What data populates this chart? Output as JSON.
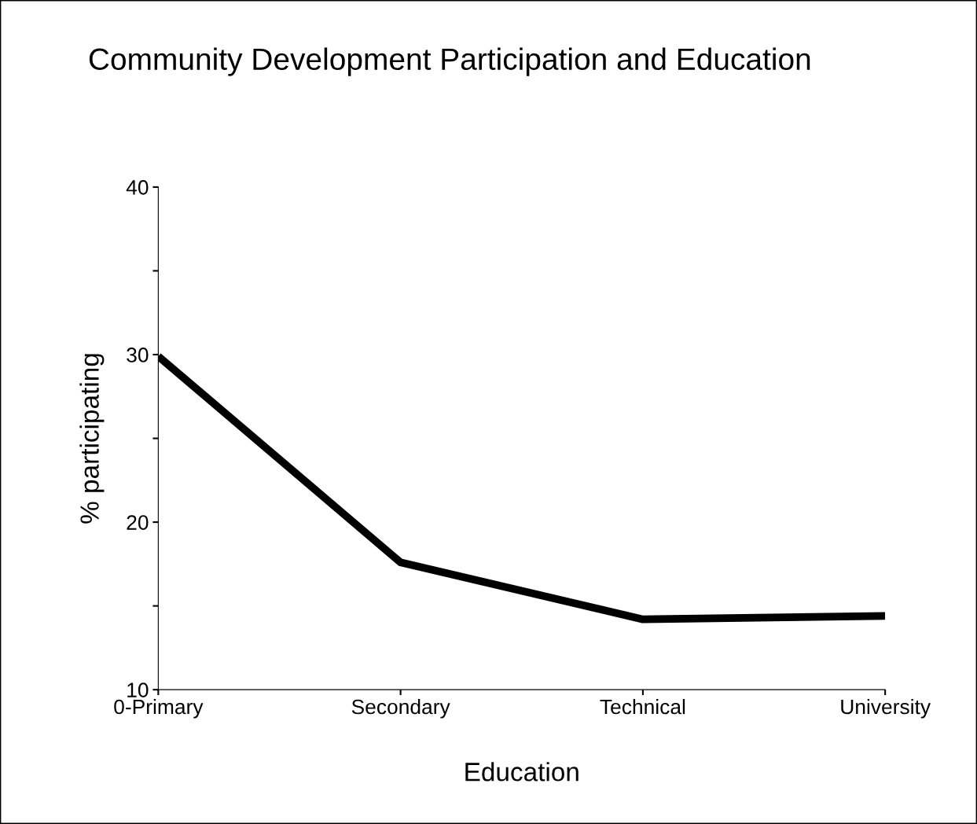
{
  "chart_data": {
    "type": "line",
    "title": "Community Development Participation and Education",
    "xlabel": "Education",
    "ylabel": "% participating",
    "categories": [
      "0-Primary",
      "Secondary",
      "Technical",
      "University"
    ],
    "series": [
      {
        "color": "#000000",
        "values": [
          29.9,
          17.6,
          14.2,
          14.4
        ]
      }
    ],
    "ylim": [
      10,
      40
    ],
    "yticks": [
      10,
      {
        "value": 15,
        "label": null
      },
      20,
      {
        "value": 25,
        "label": null
      },
      30,
      {
        "value": 35,
        "label": null
      },
      40
    ],
    "grid": false,
    "legend": false,
    "marker": "none",
    "line_style": "solid"
  }
}
